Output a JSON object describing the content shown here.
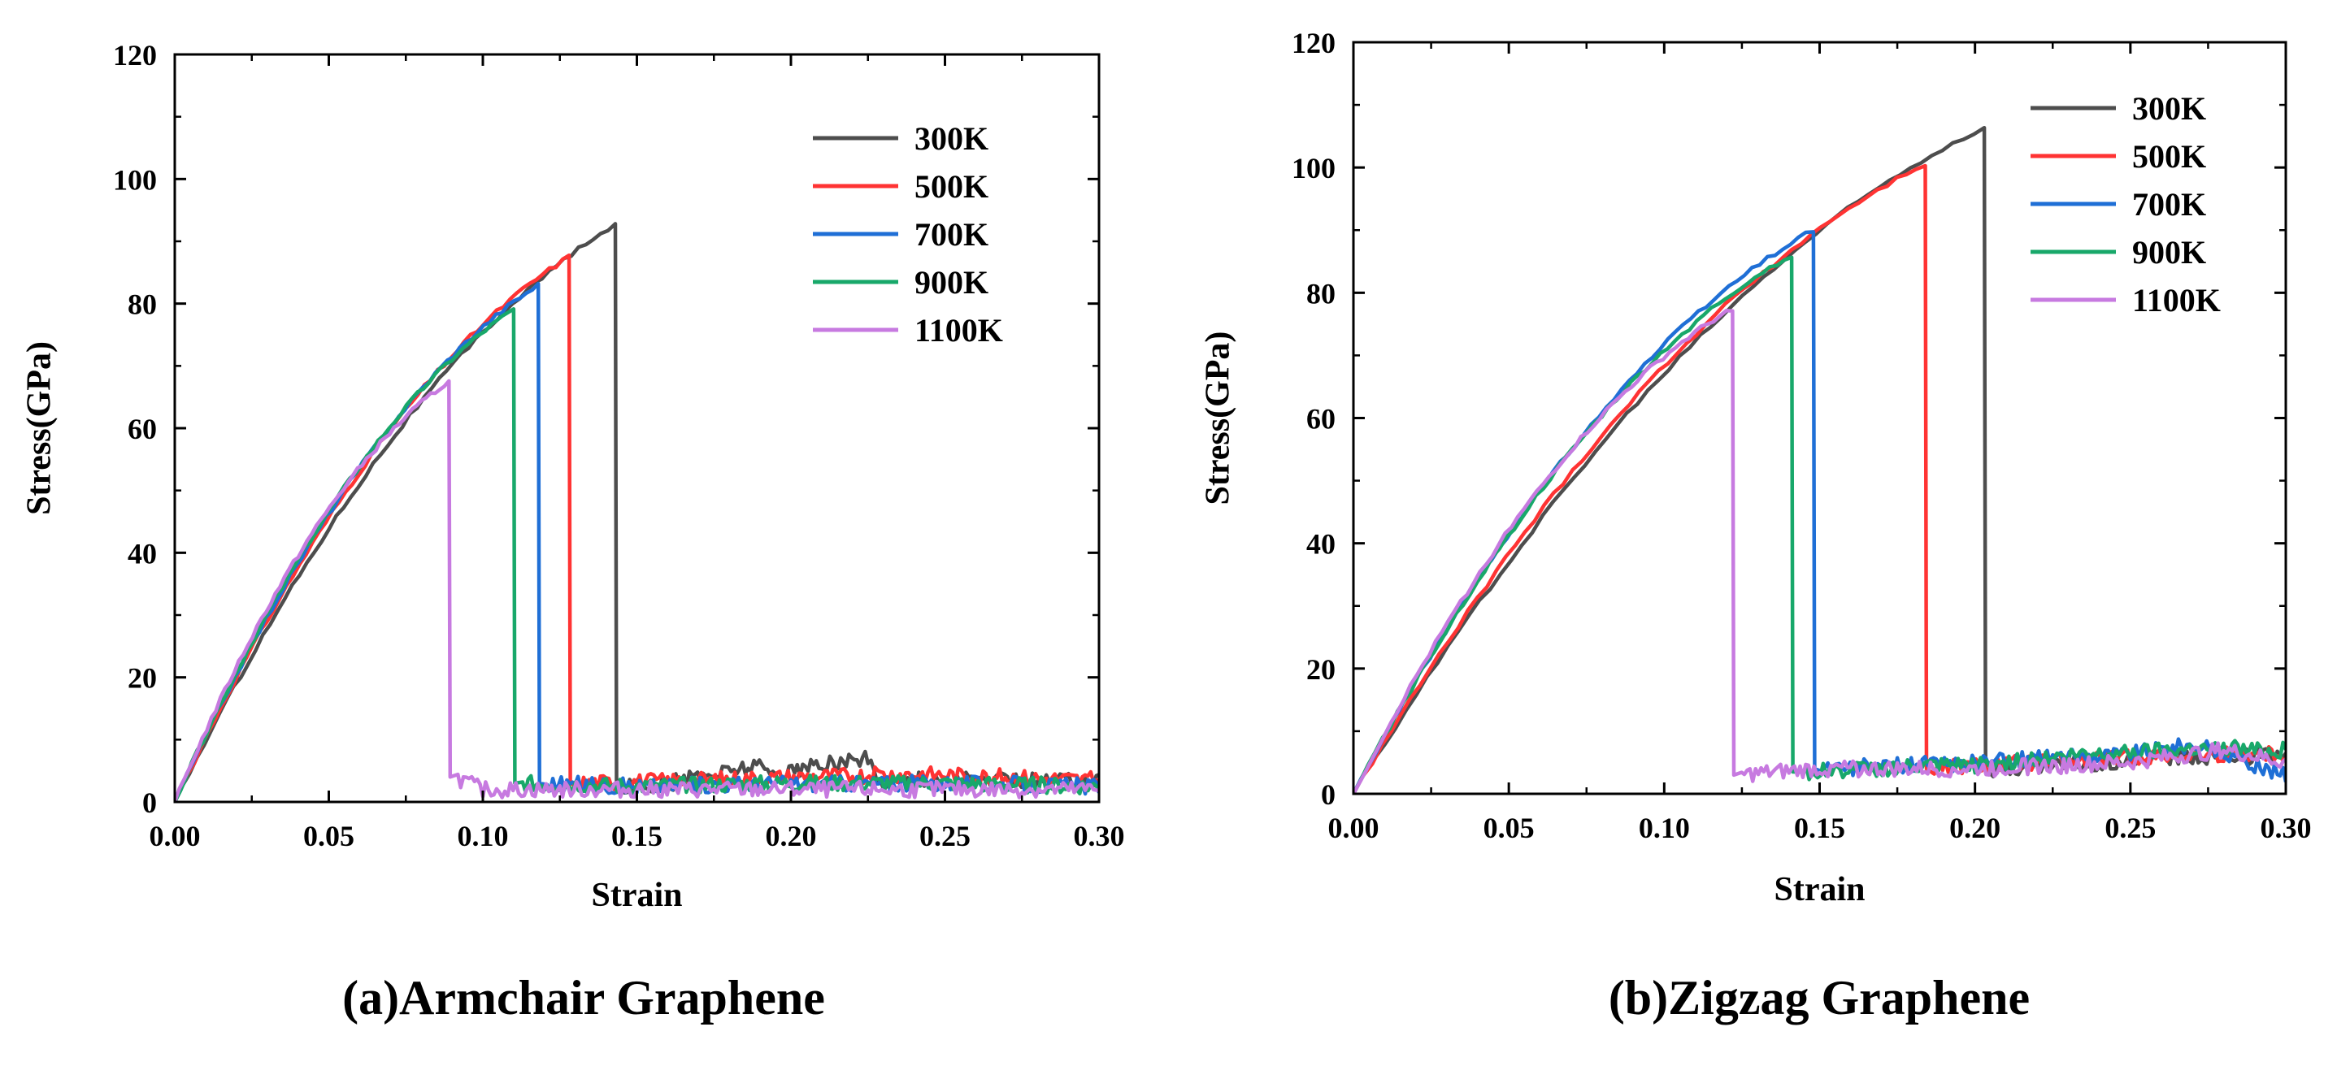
{
  "chart_data": [
    {
      "type": "line",
      "caption": "(a)Armchair Graphene",
      "xlabel": "Strain",
      "ylabel": "Stress(GPa)",
      "xlim": [
        0,
        0.3
      ],
      "ylim": [
        0,
        120
      ],
      "xticks": [
        "0.00",
        "0.05",
        "0.10",
        "0.15",
        "0.20",
        "0.25",
        "0.30"
      ],
      "yticks": [
        "0",
        "20",
        "40",
        "60",
        "80",
        "100",
        "120"
      ],
      "legend_position": "top-right",
      "series": [
        {
          "name": "300K",
          "color": "#4d4d4d",
          "peak_strain": 0.143,
          "peak_stress": 92.5,
          "residual": [
            [
              0.145,
              2.5
            ],
            [
              0.16,
              3.0
            ],
            [
              0.175,
              4.5
            ],
            [
              0.188,
              6.0
            ],
            [
              0.195,
              4.5
            ],
            [
              0.21,
              6.0
            ],
            [
              0.225,
              7.0
            ],
            [
              0.228,
              3.5
            ],
            [
              0.3,
              3.5
            ]
          ]
        },
        {
          "name": "500K",
          "color": "#ff3333",
          "peak_strain": 0.128,
          "peak_stress": 87.5,
          "residual": [
            [
              0.13,
              3.0
            ],
            [
              0.17,
              3.5
            ],
            [
              0.2,
              4.0
            ],
            [
              0.24,
              4.5
            ],
            [
              0.3,
              3.5
            ]
          ]
        },
        {
          "name": "700K",
          "color": "#1f6fd6",
          "peak_strain": 0.118,
          "peak_stress": 83.0,
          "residual": [
            [
              0.12,
              3.0
            ],
            [
              0.15,
              2.5
            ],
            [
              0.2,
              3.0
            ],
            [
              0.25,
              3.0
            ],
            [
              0.3,
              2.5
            ]
          ]
        },
        {
          "name": "900K",
          "color": "#18a86a",
          "peak_strain": 0.11,
          "peak_stress": 79.0,
          "residual": [
            [
              0.112,
              3.0
            ],
            [
              0.15,
              2.5
            ],
            [
              0.2,
              3.0
            ],
            [
              0.25,
              3.0
            ],
            [
              0.3,
              2.5
            ]
          ]
        },
        {
          "name": "1100K",
          "color": "#c77ae0",
          "peak_strain": 0.089,
          "peak_stress": 67.5,
          "residual": [
            [
              0.091,
              4.0
            ],
            [
              0.1,
              2.0
            ],
            [
              0.15,
              2.0
            ],
            [
              0.2,
              2.0
            ],
            [
              0.25,
              2.0
            ],
            [
              0.3,
              2.0
            ]
          ]
        }
      ]
    },
    {
      "type": "line",
      "caption": "(b)Zigzag Graphene",
      "xlabel": "Strain",
      "ylabel": "Stress(GPa)",
      "xlim": [
        0,
        0.3
      ],
      "ylim": [
        0,
        120
      ],
      "xticks": [
        "0.00",
        "0.05",
        "0.10",
        "0.15",
        "0.20",
        "0.25",
        "0.30"
      ],
      "yticks": [
        "0",
        "20",
        "40",
        "60",
        "80",
        "100",
        "120"
      ],
      "legend_position": "top-right",
      "series": [
        {
          "name": "300K",
          "color": "#4d4d4d",
          "peak_strain": 0.203,
          "peak_stress": 106.5,
          "residual": [
            [
              0.205,
              4.0
            ],
            [
              0.24,
              5.0
            ],
            [
              0.27,
              6.0
            ],
            [
              0.3,
              6.0
            ]
          ]
        },
        {
          "name": "500K",
          "color": "#ff3333",
          "peak_strain": 0.184,
          "peak_stress": 100.5,
          "residual": [
            [
              0.186,
              4.0
            ],
            [
              0.22,
              5.0
            ],
            [
              0.26,
              6.0
            ],
            [
              0.3,
              6.5
            ]
          ]
        },
        {
          "name": "700K",
          "color": "#1f6fd6",
          "peak_strain": 0.148,
          "peak_stress": 90.0,
          "residual": [
            [
              0.15,
              4.0
            ],
            [
              0.2,
              5.0
            ],
            [
              0.25,
              6.5
            ],
            [
              0.27,
              8.0
            ],
            [
              0.3,
              3.0
            ]
          ]
        },
        {
          "name": "900K",
          "color": "#18a86a",
          "peak_strain": 0.141,
          "peak_stress": 86.0,
          "residual": [
            [
              0.143,
              3.5
            ],
            [
              0.2,
              4.5
            ],
            [
              0.24,
              6.5
            ],
            [
              0.27,
              7.5
            ],
            [
              0.3,
              7.0
            ]
          ]
        },
        {
          "name": "1100K",
          "color": "#c77ae0",
          "peak_strain": 0.122,
          "peak_stress": 77.5,
          "residual": [
            [
              0.124,
              3.0
            ],
            [
              0.15,
              4.0
            ],
            [
              0.2,
              4.0
            ],
            [
              0.25,
              5.0
            ],
            [
              0.28,
              7.0
            ],
            [
              0.3,
              5.0
            ]
          ]
        }
      ]
    }
  ]
}
